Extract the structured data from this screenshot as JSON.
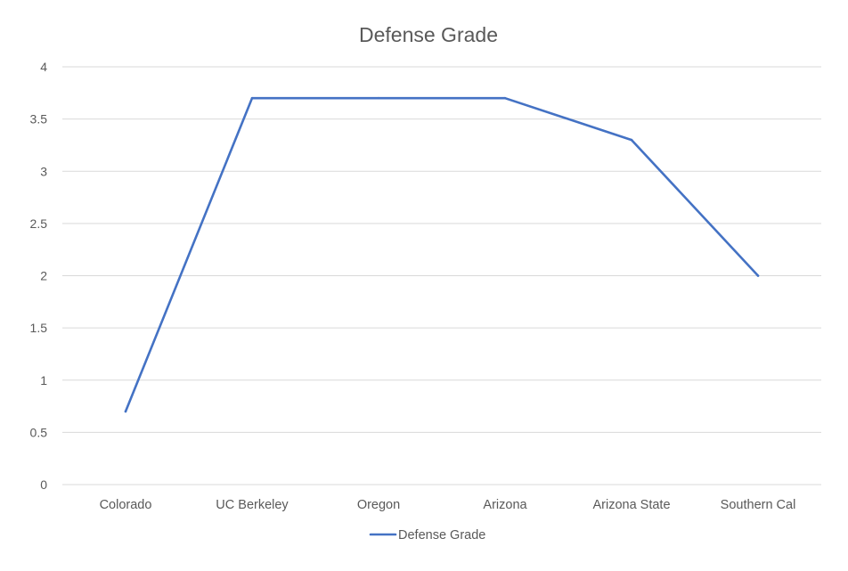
{
  "chart_data": {
    "type": "line",
    "title": "Defense Grade",
    "categories": [
      "Colorado",
      "UC Berkeley",
      "Oregon",
      "Arizona",
      "Arizona State",
      "Southern Cal"
    ],
    "series": [
      {
        "name": "Defense Grade",
        "values": [
          0.7,
          3.7,
          3.7,
          3.7,
          3.3,
          2.0
        ],
        "color": "#4472C4"
      }
    ],
    "ylim": [
      0,
      4
    ],
    "yticks": [
      "0",
      "0.5",
      "1",
      "1.5",
      "2",
      "2.5",
      "3",
      "3.5",
      "4"
    ],
    "xlabel": "",
    "ylabel": "",
    "grid": true,
    "legend": "bottom-center",
    "gridColor": "#d9d9d9",
    "tickColor": "#595959"
  }
}
